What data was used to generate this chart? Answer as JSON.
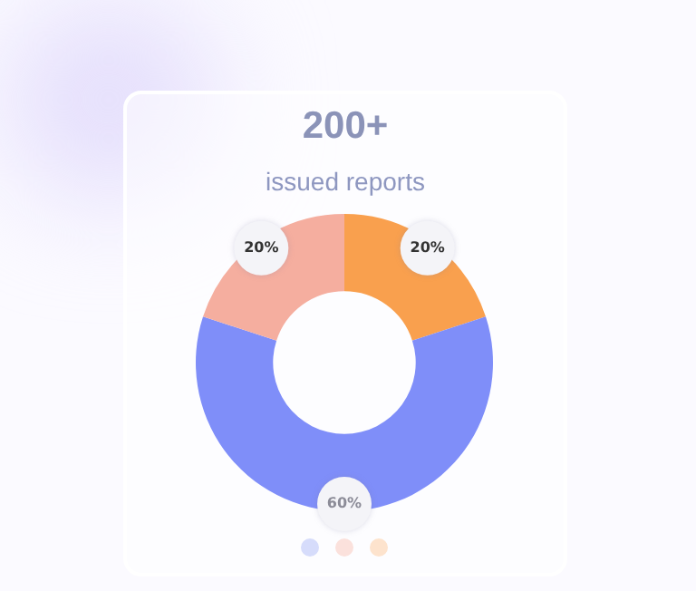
{
  "chart_data": {
    "type": "donut",
    "title": "200+",
    "subtitle": "issued reports",
    "categories": [
      null,
      null,
      null
    ],
    "values": [
      20,
      60,
      20
    ],
    "colors": [
      "#f9a04e",
      "#7f8ef9",
      "#f5ae9f"
    ],
    "value_labels": [
      "20%",
      "60%",
      "20%"
    ],
    "legend": false
  }
}
